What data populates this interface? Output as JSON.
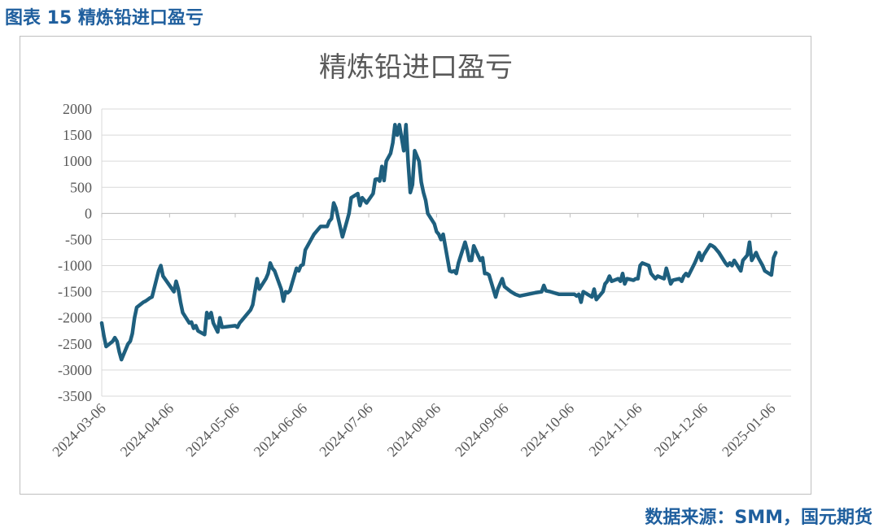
{
  "caption": "图表 15 精炼铅进口盈亏",
  "source": "数据来源：SMM，国元期货",
  "colors": {
    "line": "#1e5f7e",
    "caption": "#1f5f9e",
    "grid": "#d9d9d9",
    "axis_text": "#595959"
  },
  "chart_data": {
    "type": "line",
    "title": "精炼铅进口盈亏",
    "xlabel": "",
    "ylabel": "",
    "ylim": [
      -3500,
      2000
    ],
    "yticks": [
      2000,
      1500,
      1000,
      500,
      0,
      -500,
      -1000,
      -1500,
      -2000,
      -2500,
      -3000,
      -3500
    ],
    "xlim": [
      "2024-03-06",
      "2025-01-15"
    ],
    "xticks": [
      "2024-03-06",
      "2024-04-06",
      "2024-05-06",
      "2024-06-06",
      "2024-07-06",
      "2024-08-06",
      "2024-09-06",
      "2024-10-06",
      "2024-11-06",
      "2024-12-06",
      "2025-01-06"
    ],
    "grid": "horizontal",
    "legend": "none",
    "series": [
      {
        "name": "",
        "points": [
          [
            "2024-03-06",
            -2100
          ],
          [
            "2024-03-07",
            -2350
          ],
          [
            "2024-03-08",
            -2550
          ],
          [
            "2024-03-11",
            -2450
          ],
          [
            "2024-03-12",
            -2380
          ],
          [
            "2024-03-13",
            -2450
          ],
          [
            "2024-03-14",
            -2650
          ],
          [
            "2024-03-15",
            -2800
          ],
          [
            "2024-03-18",
            -2500
          ],
          [
            "2024-03-19",
            -2450
          ],
          [
            "2024-03-20",
            -2300
          ],
          [
            "2024-03-21",
            -2000
          ],
          [
            "2024-03-22",
            -1800
          ],
          [
            "2024-03-25",
            -1700
          ],
          [
            "2024-03-26",
            -1680
          ],
          [
            "2024-03-27",
            -1650
          ],
          [
            "2024-03-28",
            -1620
          ],
          [
            "2024-03-29",
            -1600
          ],
          [
            "2024-04-01",
            -1100
          ],
          [
            "2024-04-02",
            -1000
          ],
          [
            "2024-04-03",
            -1200
          ],
          [
            "2024-04-08",
            -1500
          ],
          [
            "2024-04-09",
            -1300
          ],
          [
            "2024-04-10",
            -1450
          ],
          [
            "2024-04-11",
            -1700
          ],
          [
            "2024-04-12",
            -1900
          ],
          [
            "2024-04-15",
            -2100
          ],
          [
            "2024-04-16",
            -2080
          ],
          [
            "2024-04-17",
            -2200
          ],
          [
            "2024-04-18",
            -2150
          ],
          [
            "2024-04-19",
            -2250
          ],
          [
            "2024-04-22",
            -2320
          ],
          [
            "2024-04-23",
            -1900
          ],
          [
            "2024-04-24",
            -2000
          ],
          [
            "2024-04-25",
            -1900
          ],
          [
            "2024-04-26",
            -2100
          ],
          [
            "2024-04-28",
            -2270
          ],
          [
            "2024-04-29",
            -2000
          ],
          [
            "2024-04-30",
            -2180
          ],
          [
            "2024-05-06",
            -2150
          ],
          [
            "2024-05-07",
            -2180
          ],
          [
            "2024-05-08",
            -2100
          ],
          [
            "2024-05-09",
            -2050
          ],
          [
            "2024-05-10",
            -2000
          ],
          [
            "2024-05-13",
            -1850
          ],
          [
            "2024-05-14",
            -1750
          ],
          [
            "2024-05-15",
            -1500
          ],
          [
            "2024-05-16",
            -1250
          ],
          [
            "2024-05-17",
            -1450
          ],
          [
            "2024-05-20",
            -1250
          ],
          [
            "2024-05-21",
            -1150
          ],
          [
            "2024-05-22",
            -950
          ],
          [
            "2024-05-23",
            -1050
          ],
          [
            "2024-05-24",
            -1100
          ],
          [
            "2024-05-27",
            -1450
          ],
          [
            "2024-05-28",
            -1680
          ],
          [
            "2024-05-29",
            -1500
          ],
          [
            "2024-05-30",
            -1520
          ],
          [
            "2024-05-31",
            -1480
          ],
          [
            "2024-06-03",
            -1050
          ],
          [
            "2024-06-04",
            -1100
          ],
          [
            "2024-06-05",
            -1000
          ],
          [
            "2024-06-06",
            -980
          ],
          [
            "2024-06-07",
            -700
          ],
          [
            "2024-06-11",
            -400
          ],
          [
            "2024-06-12",
            -350
          ],
          [
            "2024-06-13",
            -300
          ],
          [
            "2024-06-14",
            -250
          ],
          [
            "2024-06-17",
            -250
          ],
          [
            "2024-06-18",
            -150
          ],
          [
            "2024-06-19",
            -100
          ],
          [
            "2024-06-20",
            200
          ],
          [
            "2024-06-21",
            100
          ],
          [
            "2024-06-24",
            -450
          ],
          [
            "2024-06-25",
            -300
          ],
          [
            "2024-06-26",
            -150
          ],
          [
            "2024-06-27",
            0
          ],
          [
            "2024-06-28",
            300
          ],
          [
            "2024-07-01",
            380
          ],
          [
            "2024-07-02",
            150
          ],
          [
            "2024-07-03",
            300
          ],
          [
            "2024-07-04",
            250
          ],
          [
            "2024-07-05",
            200
          ],
          [
            "2024-07-08",
            380
          ],
          [
            "2024-07-09",
            650
          ],
          [
            "2024-07-10",
            660
          ],
          [
            "2024-07-11",
            620
          ],
          [
            "2024-07-12",
            900
          ],
          [
            "2024-07-13",
            630
          ],
          [
            "2024-07-14",
            1000
          ],
          [
            "2024-07-16",
            1150
          ],
          [
            "2024-07-17",
            1350
          ],
          [
            "2024-07-18",
            1700
          ],
          [
            "2024-07-19",
            1500
          ],
          [
            "2024-07-20",
            1700
          ],
          [
            "2024-07-22",
            1200
          ],
          [
            "2024-07-23",
            1700
          ],
          [
            "2024-07-24",
            1000
          ],
          [
            "2024-07-25",
            400
          ],
          [
            "2024-07-26",
            550
          ],
          [
            "2024-07-27",
            1200
          ],
          [
            "2024-07-29",
            1000
          ],
          [
            "2024-07-30",
            600
          ],
          [
            "2024-07-31",
            400
          ],
          [
            "2024-08-01",
            250
          ],
          [
            "2024-08-02",
            0
          ],
          [
            "2024-08-05",
            -200
          ],
          [
            "2024-08-06",
            -350
          ],
          [
            "2024-08-07",
            -400
          ],
          [
            "2024-08-08",
            -500
          ],
          [
            "2024-08-09",
            -400
          ],
          [
            "2024-08-12",
            -1100
          ],
          [
            "2024-08-13",
            -1120
          ],
          [
            "2024-08-14",
            -1100
          ],
          [
            "2024-08-15",
            -1150
          ],
          [
            "2024-08-16",
            -950
          ],
          [
            "2024-08-19",
            -550
          ],
          [
            "2024-08-20",
            -700
          ],
          [
            "2024-08-21",
            -900
          ],
          [
            "2024-08-22",
            -900
          ],
          [
            "2024-08-23",
            -620
          ],
          [
            "2024-08-26",
            -900
          ],
          [
            "2024-08-27",
            -850
          ],
          [
            "2024-08-28",
            -1150
          ],
          [
            "2024-08-29",
            -1150
          ],
          [
            "2024-08-30",
            -1180
          ],
          [
            "2024-09-02",
            -1600
          ],
          [
            "2024-09-03",
            -1450
          ],
          [
            "2024-09-05",
            -1250
          ],
          [
            "2024-09-06",
            -1400
          ],
          [
            "2024-09-09",
            -1500
          ],
          [
            "2024-09-11",
            -1550
          ],
          [
            "2024-09-13",
            -1580
          ],
          [
            "2024-09-20",
            -1520
          ],
          [
            "2024-09-23",
            -1500
          ],
          [
            "2024-09-24",
            -1380
          ],
          [
            "2024-09-25",
            -1480
          ],
          [
            "2024-09-27",
            -1500
          ],
          [
            "2024-10-01",
            -1550
          ],
          [
            "2024-10-08",
            -1550
          ],
          [
            "2024-10-09",
            -1580
          ],
          [
            "2024-10-10",
            -1550
          ],
          [
            "2024-10-11",
            -1700
          ],
          [
            "2024-10-12",
            -1500
          ],
          [
            "2024-10-14",
            -1550
          ],
          [
            "2024-10-16",
            -1600
          ],
          [
            "2024-10-17",
            -1450
          ],
          [
            "2024-10-18",
            -1650
          ],
          [
            "2024-10-21",
            -1500
          ],
          [
            "2024-10-22",
            -1350
          ],
          [
            "2024-10-23",
            -1300
          ],
          [
            "2024-10-24",
            -1200
          ],
          [
            "2024-10-25",
            -1300
          ],
          [
            "2024-10-28",
            -1250
          ],
          [
            "2024-10-29",
            -1300
          ],
          [
            "2024-10-30",
            -1150
          ],
          [
            "2024-10-31",
            -1350
          ],
          [
            "2024-11-01",
            -1250
          ],
          [
            "2024-11-04",
            -1280
          ],
          [
            "2024-11-05",
            -1250
          ],
          [
            "2024-11-06",
            -1250
          ],
          [
            "2024-11-07",
            -1000
          ],
          [
            "2024-11-08",
            -950
          ],
          [
            "2024-11-11",
            -1000
          ],
          [
            "2024-11-12",
            -1150
          ],
          [
            "2024-11-13",
            -1200
          ],
          [
            "2024-11-14",
            -1250
          ],
          [
            "2024-11-15",
            -1200
          ],
          [
            "2024-11-18",
            -1250
          ],
          [
            "2024-11-19",
            -1050
          ],
          [
            "2024-11-20",
            -1200
          ],
          [
            "2024-11-21",
            -1350
          ],
          [
            "2024-11-22",
            -1280
          ],
          [
            "2024-11-25",
            -1250
          ],
          [
            "2024-11-26",
            -1300
          ],
          [
            "2024-11-27",
            -1200
          ],
          [
            "2024-11-28",
            -1150
          ],
          [
            "2024-11-29",
            -1200
          ],
          [
            "2024-12-02",
            -950
          ],
          [
            "2024-12-03",
            -850
          ],
          [
            "2024-12-04",
            -750
          ],
          [
            "2024-12-05",
            -900
          ],
          [
            "2024-12-06",
            -800
          ],
          [
            "2024-12-09",
            -600
          ],
          [
            "2024-12-10",
            -620
          ],
          [
            "2024-12-11",
            -650
          ],
          [
            "2024-12-12",
            -700
          ],
          [
            "2024-12-13",
            -750
          ],
          [
            "2024-12-16",
            -950
          ],
          [
            "2024-12-17",
            -1000
          ],
          [
            "2024-12-18",
            -950
          ],
          [
            "2024-12-19",
            -1000
          ],
          [
            "2024-12-20",
            -900
          ],
          [
            "2024-12-23",
            -1100
          ],
          [
            "2024-12-24",
            -900
          ],
          [
            "2024-12-25",
            -850
          ],
          [
            "2024-12-26",
            -800
          ],
          [
            "2024-12-27",
            -550
          ],
          [
            "2024-12-28",
            -900
          ],
          [
            "2024-12-30",
            -750
          ],
          [
            "2024-12-31",
            -850
          ],
          [
            "2025-01-02",
            -1000
          ],
          [
            "2025-01-03",
            -1100
          ],
          [
            "2025-01-06",
            -1180
          ],
          [
            "2025-01-07",
            -850
          ],
          [
            "2025-01-08",
            -750
          ]
        ]
      }
    ]
  }
}
